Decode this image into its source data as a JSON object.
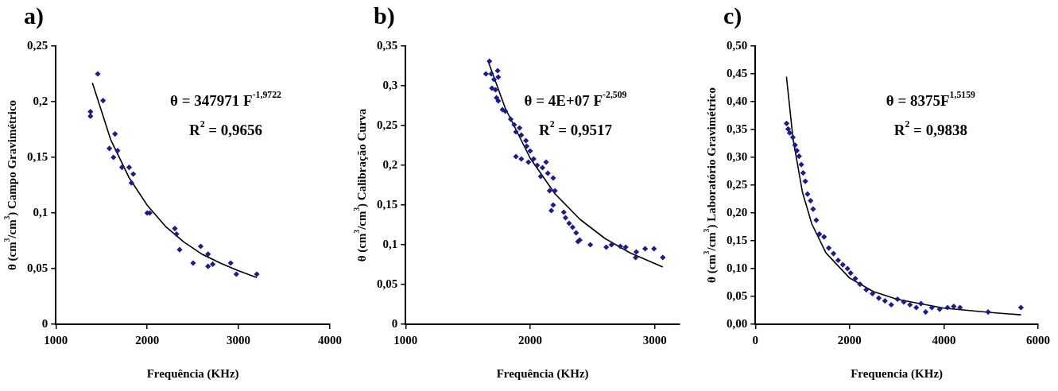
{
  "chart_data": [
    {
      "type": "scatter",
      "title": "a)",
      "xlabel": "Frequência (KHz)",
      "ylabel": "θ (cm$^{3}$/cm$^{3}$) Campo Gravimétrico",
      "annotations": [
        "θ = 347971 F$^{-1,9722}$",
        "R$^{2}$ = 0,9656"
      ],
      "xlim": [
        1000,
        4000
      ],
      "xticks": [
        1000,
        2000,
        3000,
        4000
      ],
      "ylim": [
        0,
        0.25
      ],
      "yticks": [
        {
          "value": 0,
          "label": "0"
        },
        {
          "value": 0.05,
          "label": "0,05"
        },
        {
          "value": 0.1,
          "label": "0,1"
        },
        {
          "value": 0.15,
          "label": "0,15"
        },
        {
          "value": 0.2,
          "label": "0,2"
        },
        {
          "value": 0.25,
          "label": "0,25"
        }
      ],
      "grid": false,
      "legend": false,
      "series": [
        {
          "type": "scatter",
          "marker": "diamond",
          "color": "#1c1c8a",
          "x": [
            1379,
            1379,
            1459,
            1517,
            1648,
            1586,
            1676,
            1631,
            1724,
            1803,
            1848,
            1828,
            2000,
            2028,
            2303,
            2321,
            2355,
            2503,
            2586,
            2666,
            2666,
            2717,
            2914,
            2976,
            3200
          ],
          "values": [
            0.191,
            0.187,
            0.225,
            0.201,
            0.171,
            0.158,
            0.156,
            0.15,
            0.141,
            0.141,
            0.135,
            0.127,
            0.1,
            0.1,
            0.086,
            0.081,
            0.067,
            0.055,
            0.07,
            0.063,
            0.052,
            0.054,
            0.055,
            0.045,
            0.045
          ]
        },
        {
          "type": "line",
          "marker": "none",
          "color": "#000000",
          "x": [
            1400,
            1600,
            1800,
            2000,
            2200,
            2400,
            2600,
            2800,
            3000,
            3200
          ],
          "values": [
            0.217,
            0.166,
            0.132,
            0.107,
            0.088,
            0.074,
            0.063,
            0.055,
            0.048,
            0.042
          ]
        }
      ]
    },
    {
      "type": "scatter",
      "title": "b)",
      "xlabel": "Frequência (KHz)",
      "ylabel": "θ (cm$^{3}$/cm$^{3}$) Calibração Curva",
      "annotations": [
        "θ = 4E+07 F$^{-2,509}$",
        "R$^{2}$ = 0,9517"
      ],
      "xlim": [
        1000,
        3200
      ],
      "xticks": [
        1000,
        2000,
        3000
      ],
      "ylim": [
        0,
        0.35
      ],
      "yticks": [
        {
          "value": 0,
          "label": "0"
        },
        {
          "value": 0.05,
          "label": "0,05"
        },
        {
          "value": 0.1,
          "label": "0,1"
        },
        {
          "value": 0.15,
          "label": "0,15"
        },
        {
          "value": 0.2,
          "label": "0,2"
        },
        {
          "value": 0.25,
          "label": "0,25"
        },
        {
          "value": 0.3,
          "label": "0,3"
        },
        {
          "value": 0.35,
          "label": "0,35"
        }
      ],
      "grid": false,
      "legend": false,
      "series": [
        {
          "type": "scatter",
          "marker": "diamond",
          "color": "#1c1c8a",
          "x": [
            1673,
            1645,
            1688,
            1739,
            1744,
            1710,
            1693,
            1722,
            1730,
            1744,
            1778,
            1801,
            1844,
            1872,
            1915,
            1886,
            1929,
            1966,
            1972,
            2000,
            1886,
            1929,
            1986,
            2028,
            2057,
            2128,
            2099,
            2085,
            2142,
            2185,
            2156,
            2199,
            2185,
            2170,
            2270,
            2284,
            2313,
            2341,
            2369,
            2398,
            2384,
            2483,
            2611,
            2653,
            2724,
            2767,
            2847,
            2852,
            2923,
            2994,
            3065
          ],
          "values": [
            0.331,
            0.315,
            0.315,
            0.319,
            0.311,
            0.308,
            0.297,
            0.295,
            0.285,
            0.281,
            0.27,
            0.268,
            0.258,
            0.251,
            0.247,
            0.242,
            0.238,
            0.231,
            0.224,
            0.218,
            0.211,
            0.208,
            0.204,
            0.208,
            0.2,
            0.204,
            0.197,
            0.186,
            0.19,
            0.184,
            0.168,
            0.168,
            0.15,
            0.143,
            0.141,
            0.134,
            0.127,
            0.122,
            0.115,
            0.106,
            0.104,
            0.1,
            0.097,
            0.1,
            0.098,
            0.097,
            0.084,
            0.091,
            0.095,
            0.095,
            0.084
          ]
        },
        {
          "type": "line",
          "marker": "none",
          "color": "#000000",
          "x": [
            1665,
            1800,
            2000,
            2200,
            2400,
            2600,
            2800,
            3065
          ],
          "values": [
            0.33,
            0.272,
            0.209,
            0.164,
            0.132,
            0.108,
            0.09,
            0.072
          ]
        }
      ]
    },
    {
      "type": "scatter",
      "title": "c)",
      "xlabel": "Frequencia (KHz)",
      "ylabel": "θ (cm$^{3}$/cm$^{3}$) Laboratório Gravimétrico",
      "annotations": [
        "θ = 8375F$^{1,5159}$",
        "R$^{2}$ = 0,9838"
      ],
      "xlim": [
        0,
        6000
      ],
      "xticks": [
        0,
        2000,
        4000,
        6000
      ],
      "ylim": [
        0,
        0.5
      ],
      "yticks": [
        {
          "value": 0,
          "label": "0,00"
        },
        {
          "value": 0.05,
          "label": "0,05"
        },
        {
          "value": 0.1,
          "label": "0,10"
        },
        {
          "value": 0.15,
          "label": "0,15"
        },
        {
          "value": 0.2,
          "label": "0,20"
        },
        {
          "value": 0.25,
          "label": "0,25"
        },
        {
          "value": 0.3,
          "label": "0,30"
        },
        {
          "value": 0.35,
          "label": "0,35"
        },
        {
          "value": 0.4,
          "label": "0,40"
        },
        {
          "value": 0.45,
          "label": "0,45"
        },
        {
          "value": 0.5,
          "label": "0,50"
        }
      ],
      "grid": false,
      "legend": false,
      "series": [
        {
          "type": "scatter",
          "marker": "diamond",
          "color": "#1c1c8a",
          "x": [
            663,
            696,
            729,
            796,
            842,
            882,
            928,
            975,
            1014,
            1061,
            1107,
            1173,
            1226,
            1293,
            1359,
            1458,
            1558,
            1658,
            1757,
            1856,
            1956,
            2022,
            2121,
            2221,
            2353,
            2486,
            2619,
            2751,
            2884,
            3016,
            3149,
            3282,
            3414,
            3514,
            3613,
            3746,
            3911,
            4077,
            4210,
            4343,
            4939,
            5636
          ],
          "values": [
            0.361,
            0.351,
            0.344,
            0.336,
            0.322,
            0.312,
            0.302,
            0.287,
            0.272,
            0.257,
            0.234,
            0.222,
            0.207,
            0.187,
            0.162,
            0.157,
            0.137,
            0.127,
            0.115,
            0.107,
            0.1,
            0.092,
            0.082,
            0.072,
            0.062,
            0.055,
            0.047,
            0.042,
            0.035,
            0.045,
            0.04,
            0.035,
            0.03,
            0.037,
            0.022,
            0.03,
            0.027,
            0.03,
            0.032,
            0.03,
            0.022,
            0.03
          ]
        },
        {
          "type": "line",
          "marker": "none",
          "color": "#000000",
          "x": [
            660,
            800,
            1000,
            1200,
            1500,
            2000,
            2500,
            3000,
            4000,
            5000,
            5636
          ],
          "values": [
            0.445,
            0.333,
            0.237,
            0.18,
            0.128,
            0.083,
            0.059,
            0.045,
            0.029,
            0.021,
            0.017
          ]
        }
      ]
    }
  ]
}
